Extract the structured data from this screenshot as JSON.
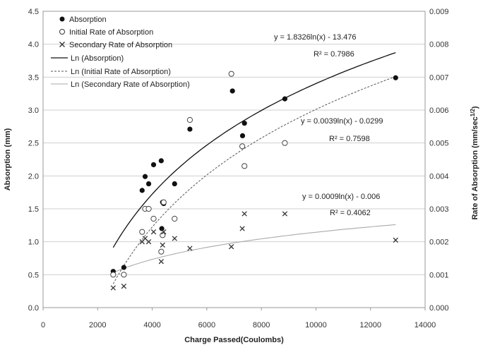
{
  "chart_data": {
    "type": "scatter",
    "xlabel": "Charge  Passed(Coulombs)",
    "ylabel": "Absorption  (mm)",
    "y2label_main": "Rate of Absorption  (mm/sec",
    "y2label_sup": "1/2",
    "y2label_end": ")",
    "xlim": [
      0,
      14000
    ],
    "ylim": [
      0,
      4.5
    ],
    "y2lim": [
      0,
      0.009
    ],
    "xticks": [
      "0",
      "2000",
      "4000",
      "6000",
      "8000",
      "10000",
      "12000",
      "14000"
    ],
    "yticks": [
      "0.0",
      "0.5",
      "1.0",
      "1.5",
      "2.0",
      "2.5",
      "3.0",
      "3.5",
      "4.0",
      "4.5"
    ],
    "y2ticks": [
      "0.000",
      "0.001",
      "0.002",
      "0.003",
      "0.004",
      "0.005",
      "0.006",
      "0.007",
      "0.008",
      "0.009"
    ],
    "grid": true,
    "legend_position": "top-left",
    "legend": [
      "Absorption",
      "Initial Rate of Absorption",
      "Secondary Rate of Absorption",
      "Ln (Absorption)",
      "Ln (Initial Rate of Absorption)",
      "Ln (Secondary Rate of Absorption)"
    ],
    "series": [
      {
        "name": "Absorption",
        "axis": "left",
        "marker": "filled-circle",
        "points": [
          [
            2570,
            0.55
          ],
          [
            2960,
            0.61
          ],
          [
            3630,
            1.78
          ],
          [
            3740,
            1.99
          ],
          [
            3870,
            1.88
          ],
          [
            4050,
            2.17
          ],
          [
            4330,
            2.23
          ],
          [
            4380,
            1.6
          ],
          [
            4350,
            1.2
          ],
          [
            4420,
            1.58
          ],
          [
            4820,
            1.88
          ],
          [
            5380,
            2.71
          ],
          [
            6940,
            3.29
          ],
          [
            7310,
            2.61
          ],
          [
            7380,
            2.8
          ],
          [
            8860,
            3.17
          ],
          [
            12920,
            3.49
          ]
        ]
      },
      {
        "name": "Initial Rate of Absorption",
        "axis": "right",
        "marker": "open-circle",
        "points": [
          [
            2570,
            0.001
          ],
          [
            2960,
            0.001
          ],
          [
            3630,
            0.0023
          ],
          [
            3740,
            0.003
          ],
          [
            3870,
            0.003
          ],
          [
            4050,
            0.0027
          ],
          [
            4330,
            0.0017
          ],
          [
            4380,
            0.0022
          ],
          [
            4420,
            0.0032
          ],
          [
            4820,
            0.0027
          ],
          [
            5380,
            0.0057
          ],
          [
            6900,
            0.0071
          ],
          [
            7300,
            0.0049
          ],
          [
            7380,
            0.0043
          ],
          [
            8860,
            0.005
          ]
        ]
      },
      {
        "name": "Secondary Rate of Absorption",
        "axis": "right",
        "marker": "x",
        "points": [
          [
            2570,
            0.0006
          ],
          [
            2960,
            0.00065
          ],
          [
            3630,
            0.002
          ],
          [
            3740,
            0.0021
          ],
          [
            3870,
            0.002
          ],
          [
            4050,
            0.0023
          ],
          [
            4330,
            0.0014
          ],
          [
            4380,
            0.0019
          ],
          [
            4420,
            0.0023
          ],
          [
            4820,
            0.0021
          ],
          [
            5380,
            0.0018
          ],
          [
            6900,
            0.00185
          ],
          [
            7300,
            0.0024
          ],
          [
            7380,
            0.00285
          ],
          [
            8860,
            0.00285
          ],
          [
            12920,
            0.00205
          ]
        ]
      },
      {
        "name": "Ln (Absorption)",
        "axis": "left",
        "fit": "log",
        "a": 1.8326,
        "b": -13.476,
        "xrange": [
          2570,
          12920
        ],
        "style": "solid"
      },
      {
        "name": "Ln (Initial Rate of Absorption)",
        "axis": "right",
        "fit": "log",
        "a": 0.0039,
        "b": -0.0299,
        "xrange": [
          2570,
          12920
        ],
        "style": "dashed"
      },
      {
        "name": "Ln (Secondary Rate of Absorption)",
        "axis": "right",
        "fit": "log",
        "a": 0.0009,
        "b": -0.006,
        "xrange": [
          2570,
          12920
        ],
        "style": "solid-light"
      }
    ],
    "annotations": [
      {
        "equation": "y = 1.8326ln(x) - 13.476",
        "r2": "R² = 0.7986"
      },
      {
        "equation": "y = 0.0039ln(x) - 0.0299",
        "r2": "R² = 0.7598"
      },
      {
        "equation": "y = 0.0009ln(x) - 0.006",
        "r2": "R² = 0.4062"
      }
    ]
  }
}
